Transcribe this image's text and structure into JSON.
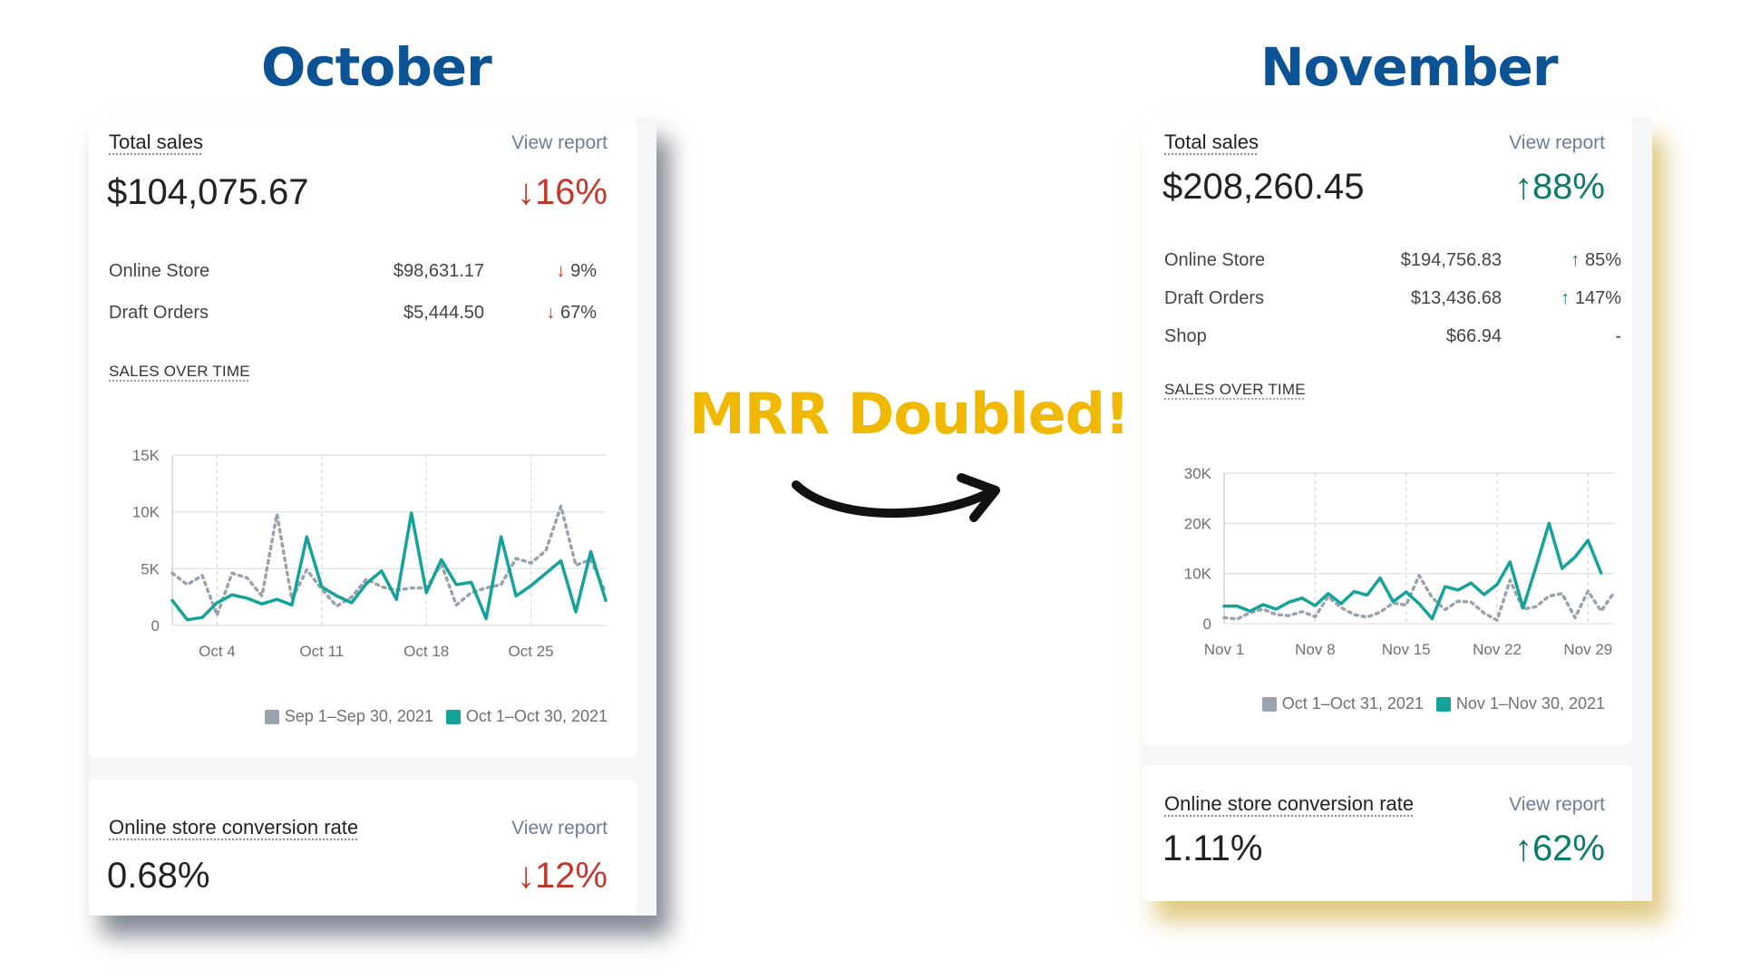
{
  "colors": {
    "month_title": "#0b5394",
    "headline": "#f1b800",
    "current_series": "#14a39a",
    "previous_series": "#9aa3ad",
    "down": "#c0392b",
    "up": "#0e7a6a"
  },
  "headline": "MRR Doubled!",
  "arrow_icon": "curved-arrow-right",
  "october": {
    "month_title": "October",
    "total_sales": {
      "title": "Total sales",
      "view_report": "View report",
      "value": "$104,075.67",
      "change": "16%",
      "change_direction": "down",
      "breakdown": [
        {
          "label": "Online Store",
          "amount": "$98,631.17",
          "change": "9%",
          "direction": "down"
        },
        {
          "label": "Draft Orders",
          "amount": "$5,444.50",
          "change": "67%",
          "direction": "down"
        }
      ]
    },
    "sales_over_time_label": "SALES OVER TIME",
    "legend": {
      "previous": "Sep 1–Sep 30, 2021",
      "current": "Oct 1–Oct 30, 2021"
    },
    "conversion": {
      "title": "Online store conversion rate",
      "view_report": "View report",
      "value": "0.68%",
      "change": "12%",
      "change_direction": "down"
    }
  },
  "november": {
    "month_title": "November",
    "total_sales": {
      "title": "Total sales",
      "view_report": "View report",
      "value": "$208,260.45",
      "change": "88%",
      "change_direction": "up",
      "breakdown": [
        {
          "label": "Online Store",
          "amount": "$194,756.83",
          "change": "85%",
          "direction": "up"
        },
        {
          "label": "Draft Orders",
          "amount": "$13,436.68",
          "change": "147%",
          "direction": "up"
        },
        {
          "label": "Shop",
          "amount": "$66.94",
          "change": "-",
          "direction": "none"
        }
      ]
    },
    "sales_over_time_label": "SALES OVER TIME",
    "legend": {
      "previous": "Oct 1–Oct 31, 2021",
      "current": "Nov 1–Nov 30, 2021"
    },
    "conversion": {
      "title": "Online store conversion rate",
      "view_report": "View report",
      "value": "1.11%",
      "change": "62%",
      "change_direction": "up"
    }
  },
  "chart_data": [
    {
      "type": "line",
      "y_tick_labels": [
        "0",
        "5K",
        "10K",
        "15K"
      ],
      "ylim": [
        0,
        15000
      ],
      "x_tick_labels": [
        "Oct 4",
        "Oct 11",
        "Oct 18",
        "Oct 25"
      ],
      "x_tick_days": [
        4,
        11,
        18,
        25
      ],
      "x_range": [
        1,
        30
      ],
      "series": [
        {
          "name": "Sep 1–Sep 30, 2021",
          "style": "dotted",
          "x": [
            1,
            2,
            3,
            4,
            5,
            6,
            7,
            8,
            9,
            10,
            11,
            12,
            13,
            14,
            15,
            16,
            17,
            18,
            19,
            20,
            21,
            22,
            23,
            24,
            25,
            26,
            27,
            28,
            29,
            30
          ],
          "values": [
            4600,
            3600,
            4400,
            900,
            4600,
            4200,
            2600,
            9800,
            2300,
            4900,
            3200,
            1700,
            2500,
            4100,
            3400,
            3100,
            3300,
            3300,
            5400,
            1800,
            2900,
            3300,
            3600,
            5900,
            5500,
            6600,
            10500,
            5300,
            5800,
            2900
          ]
        },
        {
          "name": "Oct 1–Oct 30, 2021",
          "style": "solid",
          "x": [
            1,
            2,
            3,
            4,
            5,
            6,
            7,
            8,
            9,
            10,
            11,
            12,
            13,
            14,
            15,
            16,
            17,
            18,
            19,
            20,
            21,
            22,
            23,
            24,
            25,
            26,
            27,
            28,
            29,
            30
          ],
          "values": [
            2200,
            500,
            700,
            2000,
            2700,
            2400,
            1900,
            2300,
            1800,
            7800,
            3400,
            2600,
            2000,
            3700,
            4800,
            2300,
            9900,
            2900,
            5800,
            3600,
            3800,
            600,
            7800,
            2600,
            3500,
            4600,
            5700,
            1200,
            6500,
            2200
          ]
        }
      ]
    },
    {
      "type": "line",
      "y_tick_labels": [
        "0",
        "10K",
        "20K",
        "30K"
      ],
      "ylim": [
        0,
        30000
      ],
      "x_tick_labels": [
        "Nov 1",
        "Nov 8",
        "Nov 15",
        "Nov 22",
        "Nov 29"
      ],
      "x_tick_days": [
        1,
        8,
        15,
        22,
        29
      ],
      "x_range": [
        1,
        31
      ],
      "series": [
        {
          "name": "Oct 1–Oct 31, 2021",
          "style": "dotted",
          "x": [
            1,
            2,
            3,
            4,
            5,
            6,
            7,
            8,
            9,
            10,
            11,
            12,
            13,
            14,
            15,
            16,
            17,
            18,
            19,
            20,
            21,
            22,
            23,
            24,
            25,
            26,
            27,
            28,
            29,
            30,
            31
          ],
          "values": [
            1200,
            900,
            2200,
            2900,
            1800,
            1600,
            2400,
            1400,
            5400,
            3200,
            1800,
            1300,
            2300,
            4100,
            3700,
            9600,
            5200,
            2800,
            4500,
            4300,
            2100,
            700,
            8700,
            2900,
            3400,
            5500,
            6000,
            1200,
            6500,
            2500,
            6200
          ]
        },
        {
          "name": "Nov 1–Nov 30, 2021",
          "style": "solid",
          "x": [
            1,
            2,
            3,
            4,
            5,
            6,
            7,
            8,
            9,
            10,
            11,
            12,
            13,
            14,
            15,
            16,
            17,
            18,
            19,
            20,
            21,
            22,
            23,
            24,
            25,
            26,
            27,
            28,
            29,
            30
          ],
          "values": [
            3500,
            3500,
            2500,
            3800,
            2900,
            4300,
            5100,
            3600,
            6000,
            4000,
            6400,
            5700,
            9100,
            4400,
            6300,
            4000,
            1000,
            7400,
            6700,
            8100,
            5800,
            7800,
            12300,
            3100,
            11400,
            20000,
            11000,
            13300,
            16600,
            10100
          ]
        }
      ]
    }
  ]
}
